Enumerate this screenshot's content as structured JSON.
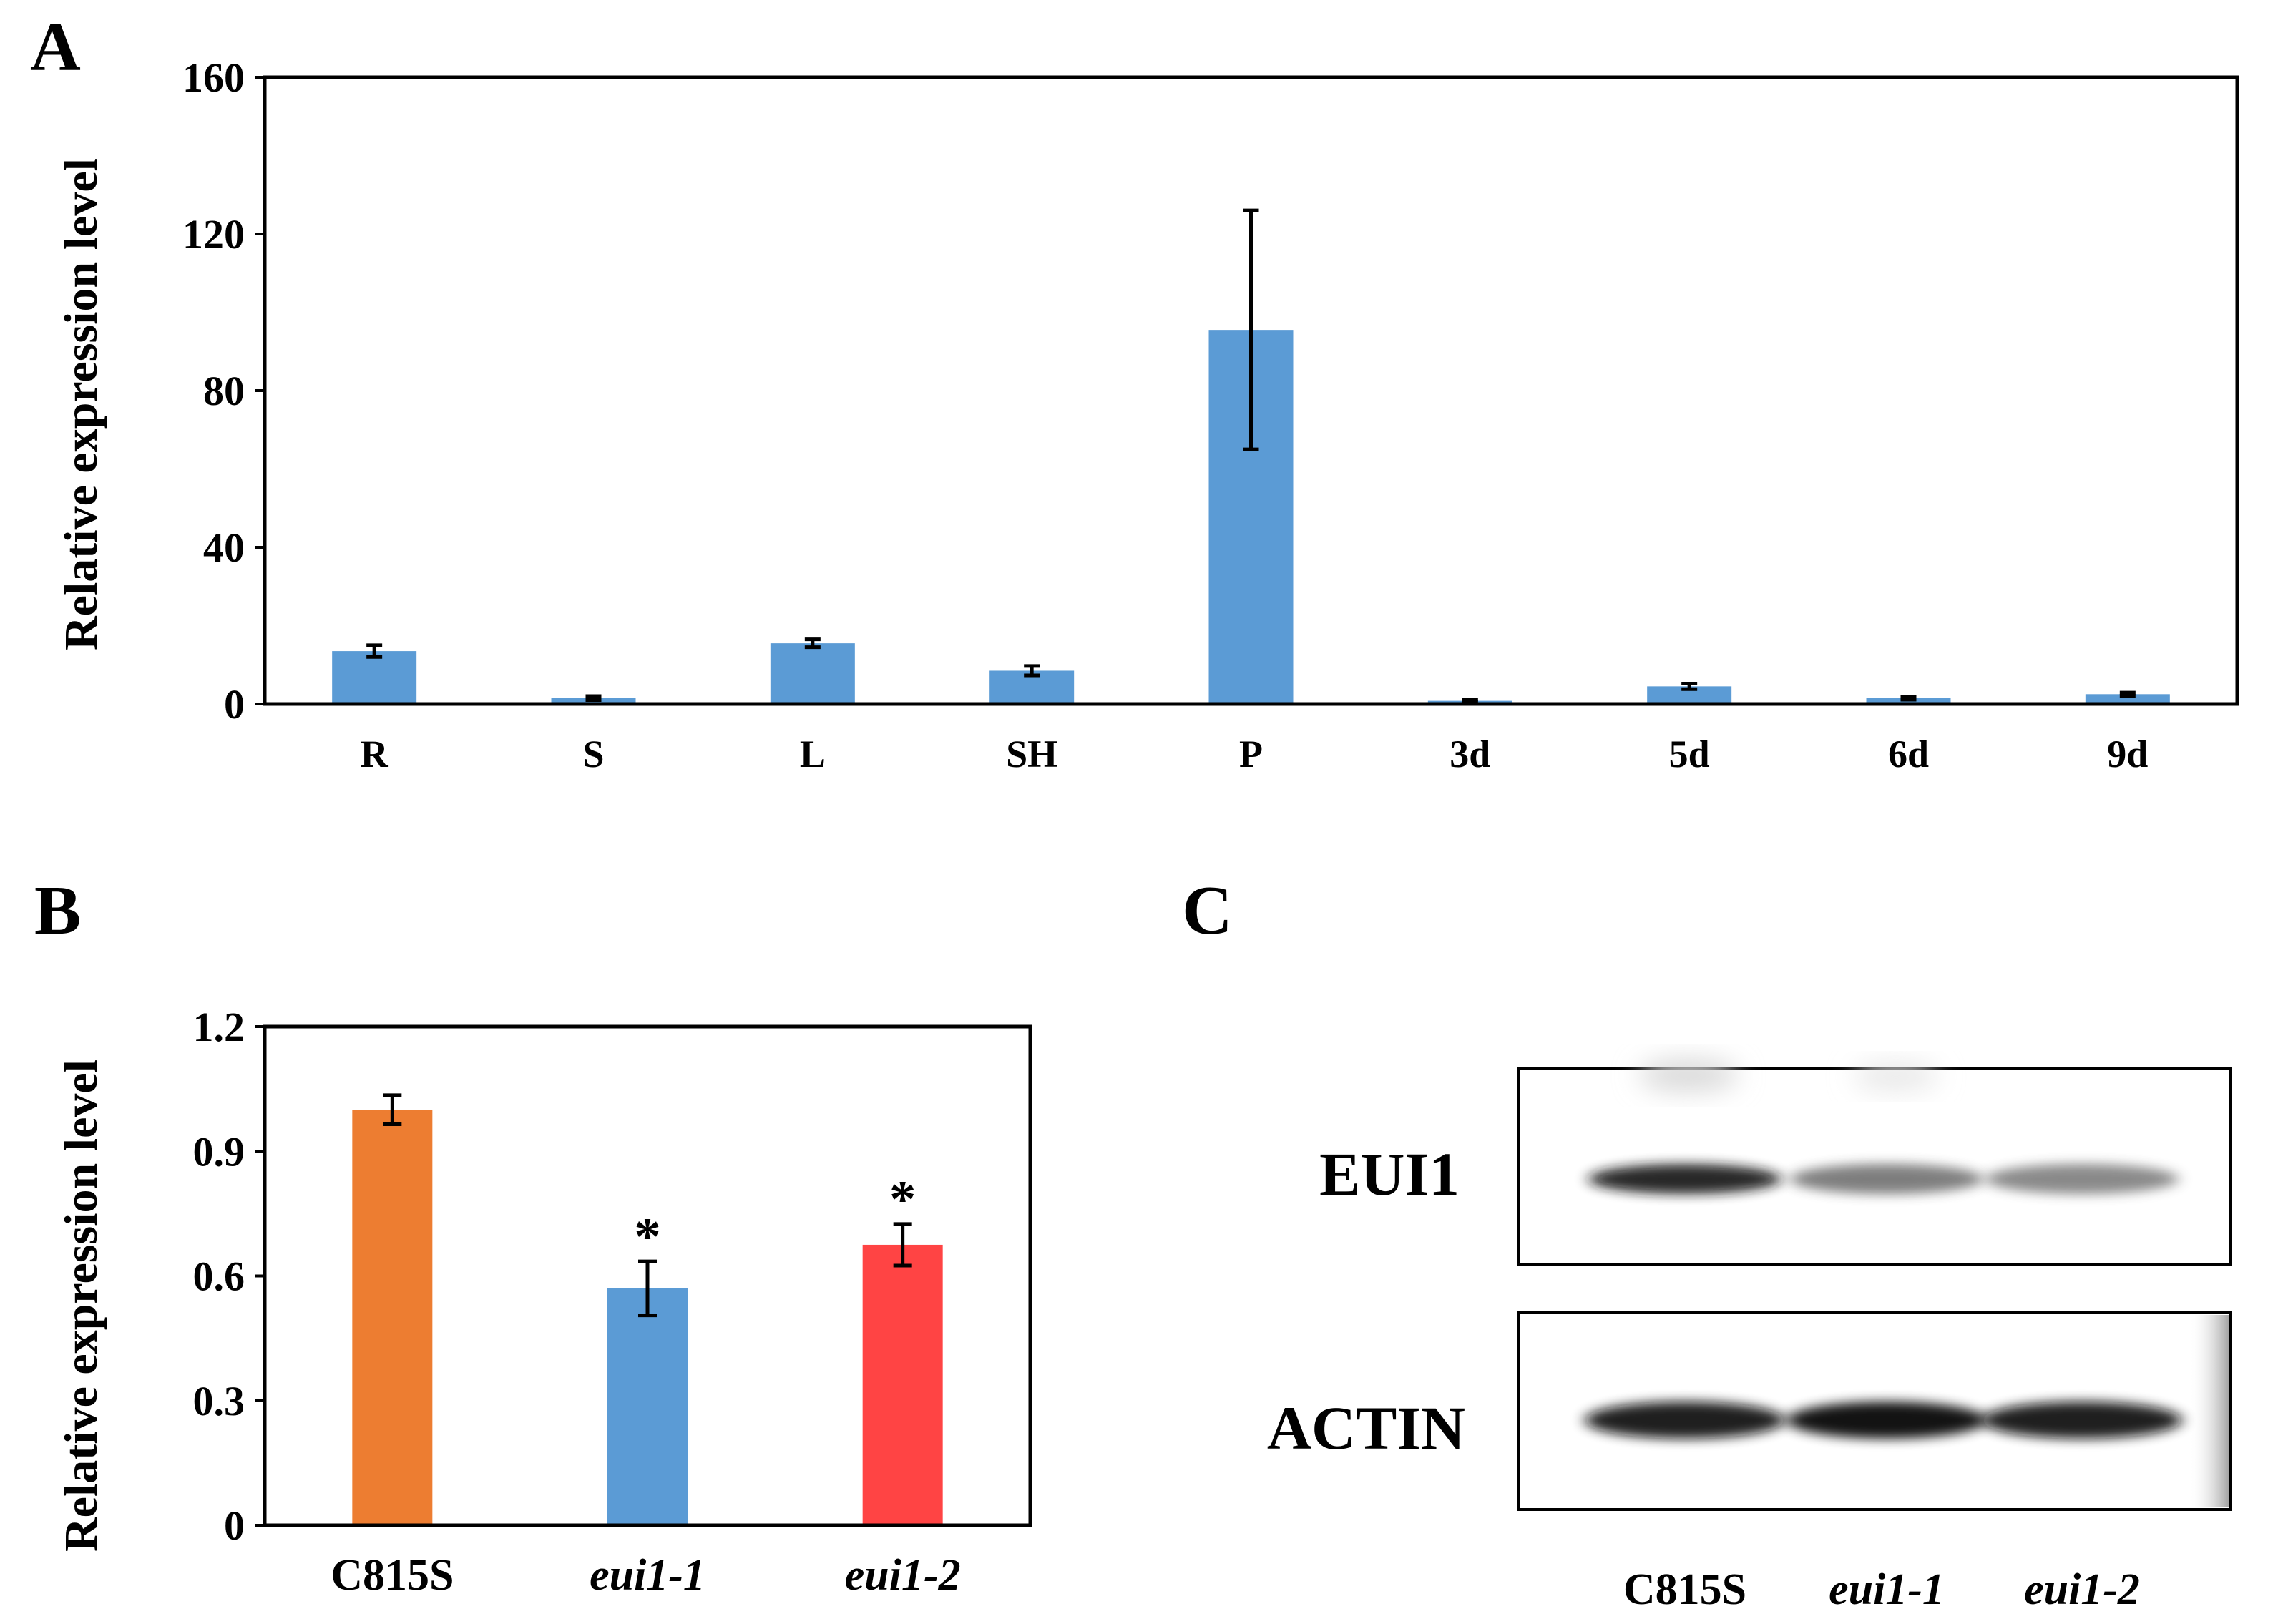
{
  "panels": {
    "A": "A",
    "B": "B",
    "C": "C"
  },
  "chart_data": [
    {
      "panel": "A",
      "type": "bar",
      "ylabel": "Relative expression level",
      "xlabel": "",
      "ylim": [
        0,
        160
      ],
      "yticks": [
        0,
        40,
        80,
        120,
        160
      ],
      "categories": [
        "R",
        "S",
        "L",
        "SH",
        "P",
        "3d",
        "5d",
        "6d",
        "9d"
      ],
      "values": [
        13.5,
        1.5,
        15.5,
        8.5,
        95.5,
        0.8,
        4.5,
        1.5,
        2.5
      ],
      "errors": [
        1.5,
        0.5,
        1.0,
        1.2,
        30.5,
        0.3,
        0.7,
        0.4,
        0.4
      ],
      "color": "#5b9bd5",
      "grid": false
    },
    {
      "panel": "B",
      "type": "bar",
      "ylabel": "Relative expression level",
      "xlabel": "",
      "ylim": [
        0,
        1.2
      ],
      "yticks": [
        "0",
        "0.3",
        "0.6",
        "0.9",
        "1.2"
      ],
      "yticks_values": [
        0,
        0.3,
        0.6,
        0.9,
        1.2
      ],
      "categories": [
        "C815S",
        "eui1-1",
        "eui1-2"
      ],
      "categories_italic": [
        false,
        true,
        true
      ],
      "values": [
        1.0,
        0.57,
        0.675
      ],
      "errors": [
        0.035,
        0.065,
        0.05
      ],
      "colors": [
        "#ed7d31",
        "#5b9bd5",
        "#ff4444"
      ],
      "annotations": [
        "",
        "*",
        "*"
      ],
      "grid": false
    }
  ],
  "blot": {
    "rows": [
      "EUI1",
      "ACTIN"
    ],
    "lanes": [
      "C815S",
      "eui1-1",
      "eui1-2"
    ],
    "lanes_italic": [
      false,
      true,
      true
    ],
    "band_intensity": {
      "EUI1": [
        0.9,
        0.55,
        0.5
      ],
      "ACTIN": [
        0.95,
        1.0,
        0.95
      ]
    }
  }
}
